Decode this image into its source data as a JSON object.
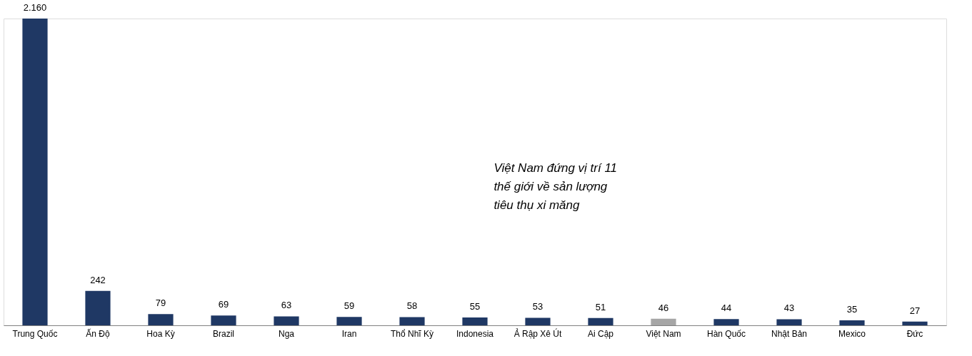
{
  "chart_data": {
    "type": "bar",
    "categories": [
      "Trung Quốc",
      "Ấn Độ",
      "Hoa Kỳ",
      "Brazil",
      "Nga",
      "Iran",
      "Thổ Nhĩ Kỳ",
      "Indonesia",
      "Ả Rập Xê Út",
      "Ai Cập",
      "Việt Nam",
      "Hàn Quốc",
      "Nhật Bản",
      "Mexico",
      "Đức"
    ],
    "values": [
      2160,
      242,
      79,
      69,
      63,
      59,
      58,
      55,
      53,
      51,
      46,
      44,
      43,
      35,
      27
    ],
    "value_labels": [
      "2.160",
      "242",
      "79",
      "69",
      "63",
      "59",
      "58",
      "55",
      "53",
      "51",
      "46",
      "44",
      "43",
      "35",
      "27"
    ],
    "colors": [
      "#1f3864",
      "#1f3864",
      "#1f3864",
      "#1f3864",
      "#1f3864",
      "#1f3864",
      "#1f3864",
      "#1f3864",
      "#1f3864",
      "#1f3864",
      "#a6a6a6",
      "#1f3864",
      "#1f3864",
      "#1f3864",
      "#1f3864"
    ],
    "annotations": [
      "Việt Nam đứng vị trí 11 thế giới về sản lượng tiêu thụ xi măng"
    ]
  }
}
